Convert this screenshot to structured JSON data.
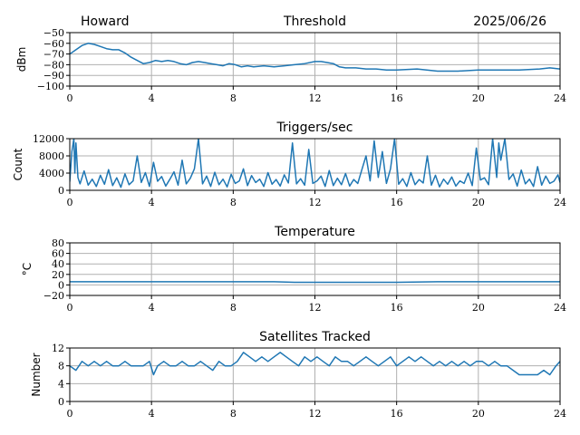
{
  "header": {
    "left": "Howard",
    "right": "2025/06/26"
  },
  "colors": {
    "series": "#1f77b4",
    "grid": "#b0b0b0"
  },
  "chart_data": [
    {
      "id": "threshold",
      "type": "line",
      "title": "Threshold",
      "ylabel": "dBm",
      "xlim": [
        0,
        24
      ],
      "ylim": [
        -100,
        -50
      ],
      "xticks": [
        0,
        4,
        8,
        12,
        16,
        20,
        24
      ],
      "yticks": [
        -100,
        -90,
        -80,
        -70,
        -60,
        -50
      ],
      "ytick_labels": [
        "−100",
        "−90",
        "−80",
        "−70",
        "−60",
        "−50"
      ],
      "grid": true,
      "series": [
        {
          "x": [
            0,
            0.3,
            0.6,
            0.9,
            1.2,
            1.5,
            1.8,
            2.1,
            2.4,
            2.7,
            3.0,
            3.3,
            3.6,
            3.9,
            4.2,
            4.5,
            4.8,
            5.1,
            5.4,
            5.7,
            6.0,
            6.3,
            6.6,
            6.9,
            7.2,
            7.5,
            7.8,
            8.1,
            8.4,
            8.7,
            9.0,
            9.5,
            10.0,
            10.5,
            11.0,
            11.5,
            12.0,
            12.3,
            12.6,
            12.9,
            13.2,
            13.5,
            14.0,
            14.5,
            15.0,
            15.5,
            16.0,
            17.0,
            18.0,
            19.0,
            20.0,
            21.0,
            22.0,
            23.0,
            23.5,
            24.0
          ],
          "y": [
            -70,
            -66,
            -62,
            -60,
            -61,
            -63,
            -65,
            -66,
            -66,
            -69,
            -73,
            -76,
            -79,
            -78,
            -76,
            -77,
            -76,
            -77,
            -79,
            -80,
            -78,
            -77,
            -78,
            -79,
            -80,
            -81,
            -79,
            -80,
            -82,
            -81,
            -82,
            -81,
            -82,
            -81,
            -80,
            -79,
            -77,
            -77,
            -78,
            -79,
            -82,
            -83,
            -83,
            -84,
            -84,
            -85,
            -85,
            -84,
            -86,
            -86,
            -85,
            -85,
            -85,
            -84,
            -83,
            -84
          ]
        }
      ]
    },
    {
      "id": "triggers",
      "type": "line",
      "title": "Triggers/sec",
      "ylabel": "Count",
      "xlim": [
        0,
        24
      ],
      "ylim": [
        0,
        12000
      ],
      "xticks": [
        0,
        4,
        8,
        12,
        16,
        20,
        24
      ],
      "yticks": [
        0,
        4000,
        8000,
        12000
      ],
      "ytick_labels": [
        "0",
        "4000",
        "8000",
        "12000"
      ],
      "grid": true,
      "series": [
        {
          "x": [
            0,
            0.1,
            0.2,
            0.25,
            0.3,
            0.4,
            0.5,
            0.7,
            0.9,
            1.1,
            1.3,
            1.5,
            1.7,
            1.9,
            2.1,
            2.3,
            2.5,
            2.7,
            2.9,
            3.1,
            3.3,
            3.5,
            3.7,
            3.9,
            4.1,
            4.3,
            4.5,
            4.7,
            4.9,
            5.1,
            5.3,
            5.5,
            5.7,
            5.9,
            6.1,
            6.3,
            6.5,
            6.7,
            6.9,
            7.1,
            7.3,
            7.5,
            7.7,
            7.9,
            8.1,
            8.3,
            8.5,
            8.7,
            8.9,
            9.1,
            9.3,
            9.5,
            9.7,
            9.9,
            10.1,
            10.3,
            10.5,
            10.7,
            10.9,
            11.0,
            11.1,
            11.3,
            11.5,
            11.7,
            11.9,
            12.1,
            12.3,
            12.5,
            12.7,
            12.9,
            13.1,
            13.3,
            13.5,
            13.7,
            13.9,
            14.1,
            14.3,
            14.5,
            14.7,
            14.9,
            15.1,
            15.3,
            15.5,
            15.7,
            15.9,
            16.1,
            16.3,
            16.5,
            16.7,
            16.9,
            17.1,
            17.3,
            17.5,
            17.7,
            17.9,
            18.1,
            18.3,
            18.5,
            18.7,
            18.9,
            19.1,
            19.3,
            19.5,
            19.7,
            19.9,
            20.1,
            20.3,
            20.5,
            20.7,
            20.9,
            21.0,
            21.1,
            21.3,
            21.5,
            21.7,
            21.9,
            22.1,
            22.3,
            22.5,
            22.7,
            22.9,
            23.1,
            23.3,
            23.5,
            23.7,
            23.9,
            24.0
          ],
          "y": [
            2000,
            9000,
            12000,
            4000,
            11000,
            3000,
            1500,
            4500,
            1200,
            2600,
            900,
            3500,
            1400,
            4800,
            1100,
            2900,
            700,
            3800,
            1300,
            2200,
            8000,
            1800,
            4100,
            900,
            6500,
            2100,
            3200,
            1000,
            2600,
            4300,
            1200,
            7000,
            1500,
            2800,
            5000,
            12000,
            1500,
            3300,
            900,
            4200,
            1300,
            2600,
            800,
            3700,
            1600,
            2200,
            5000,
            1100,
            3400,
            1800,
            2600,
            900,
            4100,
            1400,
            2500,
            1000,
            3600,
            1700,
            11000,
            6000,
            1500,
            2700,
            1200,
            9500,
            1600,
            2200,
            3300,
            900,
            4600,
            1100,
            2800,
            1300,
            3900,
            1000,
            2500,
            1600,
            4800,
            8000,
            2200,
            11500,
            3000,
            9000,
            1600,
            5000,
            12000,
            1400,
            2700,
            900,
            4100,
            1300,
            2500,
            1700,
            8000,
            1200,
            3500,
            800,
            2600,
            1400,
            3100,
            1000,
            2200,
            1600,
            4000,
            1100,
            9800,
            2400,
            2900,
            1300,
            12000,
            3000,
            11000,
            7000,
            12000,
            2500,
            3800,
            1000,
            4700,
            1500,
            2600,
            900,
            5500,
            1200,
            3300,
            1600,
            2100,
            3600,
            1800
          ]
        }
      ]
    },
    {
      "id": "temperature",
      "type": "line",
      "title": "Temperature",
      "ylabel": "°C",
      "xlim": [
        0,
        24
      ],
      "ylim": [
        -20,
        80
      ],
      "xticks": [
        0,
        4,
        8,
        12,
        16,
        20,
        24
      ],
      "yticks": [
        -20,
        0,
        20,
        40,
        60,
        80
      ],
      "ytick_labels": [
        "−20",
        "0",
        "20",
        "40",
        "60",
        "80"
      ],
      "grid": true,
      "series": [
        {
          "x": [
            0,
            2,
            4,
            6,
            8,
            10,
            11,
            12,
            14,
            16,
            18,
            20,
            22,
            24
          ],
          "y": [
            6,
            6,
            6,
            6,
            6,
            6,
            5,
            5,
            5,
            5,
            6,
            6,
            6,
            6
          ]
        }
      ]
    },
    {
      "id": "satellites",
      "type": "line",
      "title": "Satellites Tracked",
      "ylabel": "Number",
      "xlim": [
        0,
        24
      ],
      "ylim": [
        0,
        12
      ],
      "xticks": [
        0,
        4,
        8,
        12,
        16,
        20,
        24
      ],
      "yticks": [
        0,
        4,
        8,
        12
      ],
      "ytick_labels": [
        "0",
        "4",
        "8",
        "12"
      ],
      "grid": true,
      "series": [
        {
          "x": [
            0,
            0.3,
            0.6,
            0.9,
            1.2,
            1.5,
            1.8,
            2.1,
            2.4,
            2.7,
            3.0,
            3.3,
            3.6,
            3.9,
            4.1,
            4.3,
            4.6,
            4.9,
            5.2,
            5.5,
            5.8,
            6.1,
            6.4,
            6.7,
            7.0,
            7.3,
            7.6,
            7.9,
            8.2,
            8.5,
            8.8,
            9.1,
            9.4,
            9.7,
            10.0,
            10.3,
            10.6,
            10.9,
            11.2,
            11.5,
            11.8,
            12.1,
            12.4,
            12.7,
            13.0,
            13.3,
            13.6,
            13.9,
            14.2,
            14.5,
            14.8,
            15.1,
            15.4,
            15.7,
            16.0,
            16.3,
            16.6,
            16.9,
            17.2,
            17.5,
            17.8,
            18.1,
            18.4,
            18.7,
            19.0,
            19.3,
            19.6,
            19.9,
            20.2,
            20.5,
            20.8,
            21.1,
            21.4,
            21.7,
            22.0,
            22.3,
            22.6,
            22.9,
            23.2,
            23.5,
            23.8,
            24.0
          ],
          "y": [
            8,
            7,
            9,
            8,
            9,
            8,
            9,
            8,
            8,
            9,
            8,
            8,
            8,
            9,
            6,
            8,
            9,
            8,
            8,
            9,
            8,
            8,
            9,
            8,
            7,
            9,
            8,
            8,
            9,
            11,
            10,
            9,
            10,
            9,
            10,
            11,
            10,
            9,
            8,
            10,
            9,
            10,
            9,
            8,
            10,
            9,
            9,
            8,
            9,
            10,
            9,
            8,
            9,
            10,
            8,
            9,
            10,
            9,
            10,
            9,
            8,
            9,
            8,
            9,
            8,
            9,
            8,
            9,
            9,
            8,
            9,
            8,
            8,
            7,
            6,
            6,
            6,
            6,
            7,
            6,
            8,
            9
          ]
        }
      ]
    }
  ]
}
